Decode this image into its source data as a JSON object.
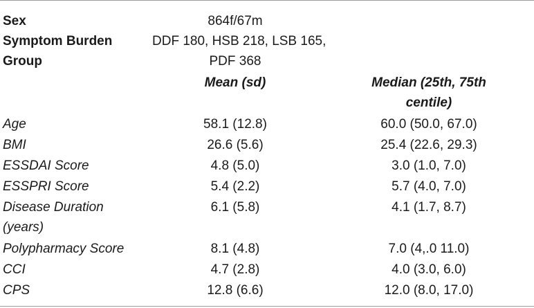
{
  "table": {
    "top_rows": [
      {
        "label_lines": [
          "Sex"
        ],
        "value_lines": [
          "864f/67m"
        ]
      },
      {
        "label_lines": [
          "Symptom Burden",
          "Group"
        ],
        "value_lines": [
          "DDF 180, HSB 218, LSB 165,",
          "PDF 368"
        ]
      }
    ],
    "headers": {
      "mean": "Mean (sd)",
      "median_lines": [
        "Median (25th, 75th",
        "centile)"
      ]
    },
    "rows": [
      {
        "label_lines": [
          "Age"
        ],
        "mean": "58.1 (12.8)",
        "median": "60.0 (50.0, 67.0)"
      },
      {
        "label_lines": [
          "BMI"
        ],
        "mean": "26.6 (5.6)",
        "median": "25.4 (22.6, 29.3)"
      },
      {
        "label_lines": [
          "ESSDAI Score"
        ],
        "mean": "4.8 (5.0)",
        "median": "3.0 (1.0, 7.0)"
      },
      {
        "label_lines": [
          "ESSPRI Score"
        ],
        "mean": "5.4 (2.2)",
        "median": "5.7 (4.0, 7.0)"
      },
      {
        "label_lines": [
          "Disease Duration",
          "(years)"
        ],
        "mean": "6.1 (5.8)",
        "median": "4.1 (1.7, 8.7)"
      },
      {
        "label_lines": [
          "Polypharmacy Score"
        ],
        "mean": "8.1 (4.8)",
        "median": "7.0 (4,.0 11.0)"
      },
      {
        "label_lines": [
          "CCI"
        ],
        "mean": "4.7 (2.8)",
        "median": "4.0 (3.0, 6.0)"
      },
      {
        "label_lines": [
          "CPS"
        ],
        "mean": "12.8 (6.6)",
        "median": "12.0 (8.0, 17.0)"
      }
    ]
  }
}
